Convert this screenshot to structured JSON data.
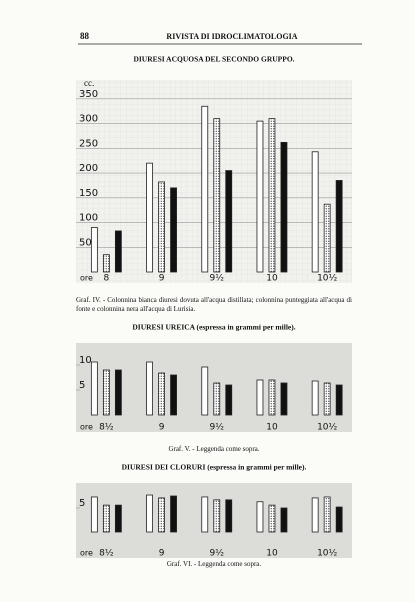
{
  "header": {
    "page_number": "88",
    "journal": "RIVISTA DI IDROCLIMATOLOGIA"
  },
  "chart_data": [
    {
      "type": "bar",
      "title": "DIURESI ACQUOSA DEL SECONDO GRUPPO.",
      "ylabel": "cc.",
      "xlabel": "ore",
      "categories": [
        "8",
        "9",
        "9½",
        "10",
        "10½"
      ],
      "series": [
        {
          "color": "#ffffff",
          "pattern": "plain",
          "values": [
            90,
            220,
            335,
            305,
            243
          ]
        },
        {
          "color": "#ffffff",
          "pattern": "dotted",
          "values": [
            35,
            182,
            310,
            310,
            137
          ]
        },
        {
          "color": "#111111",
          "pattern": "plain",
          "values": [
            83,
            170,
            205,
            262,
            185
          ]
        }
      ],
      "ylim": [
        0,
        380
      ],
      "yticks": [
        50,
        100,
        150,
        200,
        250,
        300,
        350
      ],
      "grid": true,
      "caption": "Graf. IV. - Colonnina bianca diuresi dovuta all'acqua distillata; colonnina punteggiata all'acqua di fonte e colonnina nera all'acqua di Lurisia."
    },
    {
      "type": "bar",
      "title": "DIURESI UREICA (espressa in grammi per mille).",
      "xlabel": "ore",
      "categories": [
        "8½",
        "9",
        "9½",
        "10",
        "10½"
      ],
      "series": [
        {
          "color": "#ffffff",
          "pattern": "plain",
          "values": [
            10.6,
            10.6,
            9.6,
            7,
            6.8
          ]
        },
        {
          "color": "#ffffff",
          "pattern": "dotted",
          "values": [
            9,
            8.4,
            6.4,
            7,
            6.4
          ]
        },
        {
          "color": "#111111",
          "pattern": "plain",
          "values": [
            9,
            8,
            6,
            6.4,
            6
          ]
        }
      ],
      "ylim": [
        0,
        13
      ],
      "yticks": [
        5,
        10
      ],
      "grid": false,
      "caption": "Graf. V. - Leggenda come sopra."
    },
    {
      "type": "bar",
      "title": "DIURESI DEI CLORURI (espressa in grammi per mille).",
      "xlabel": "ore",
      "categories": [
        "8½",
        "9",
        "9½",
        "10",
        "10½"
      ],
      "series": [
        {
          "color": "#ffffff",
          "pattern": "plain",
          "values": [
            7.3,
            7.7,
            7.3,
            6.3,
            7.1
          ]
        },
        {
          "color": "#ffffff",
          "pattern": "dotted",
          "values": [
            5.6,
            7.1,
            6.7,
            5.6,
            7.3
          ]
        },
        {
          "color": "#111111",
          "pattern": "plain",
          "values": [
            5.6,
            7.5,
            6.7,
            5,
            5.2
          ]
        }
      ],
      "ylim": [
        0,
        10
      ],
      "yticks": [
        5
      ],
      "grid": false,
      "caption": "Graf. VI. - Leggenda come sopra."
    }
  ]
}
